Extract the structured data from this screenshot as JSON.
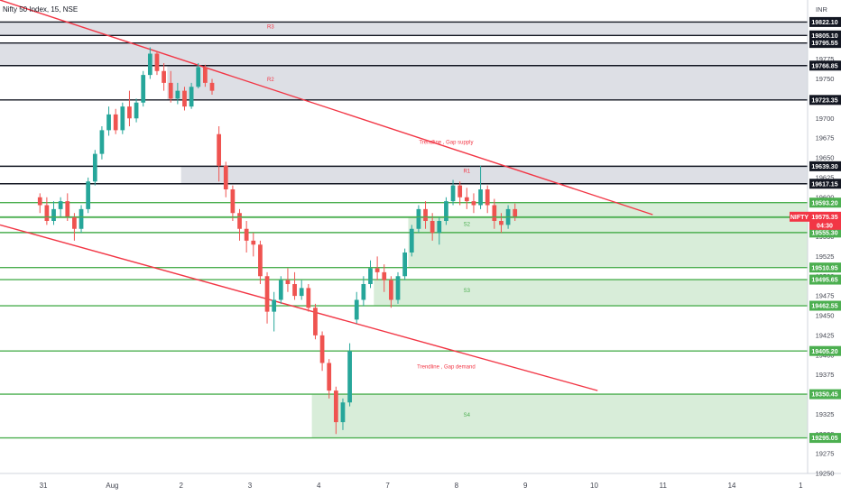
{
  "title": "Nifty 50 Index, 15, NSE",
  "currency": "INR",
  "colors": {
    "up": "#26a69a",
    "down": "#ef5350",
    "resistance": "#131722",
    "support": "#4caf50",
    "trend": "#f23645",
    "supply_fill": "#d1d4dc",
    "demand_fill": "#c8e6c9",
    "price_tag": "#f23645"
  },
  "chart_data": {
    "type": "candlestick",
    "ylim": [
      19250,
      19850
    ],
    "y_ticks": [
      19250,
      19275,
      19300,
      19325,
      19350,
      19375,
      19400,
      19425,
      19450,
      19475,
      19500,
      19525,
      19550,
      19575,
      19600,
      19625,
      19650,
      19675,
      19700,
      19725,
      19750,
      19775
    ],
    "x_axis": [
      {
        "label": "31",
        "pos": 0.5
      },
      {
        "label": "Aug",
        "pos": 10.5
      },
      {
        "label": "2",
        "pos": 20.5
      },
      {
        "label": "3",
        "pos": 30.5
      },
      {
        "label": "4",
        "pos": 40.5
      },
      {
        "label": "7",
        "pos": 50.5
      },
      {
        "label": "8",
        "pos": 60.5
      },
      {
        "label": "9",
        "pos": 70.5
      },
      {
        "label": "10",
        "pos": 80.5
      },
      {
        "label": "11",
        "pos": 90.5
      },
      {
        "label": "14",
        "pos": 100.5
      },
      {
        "label": "1",
        "pos": 110.5
      }
    ],
    "x_range": [
      -5.8,
      111.5
    ],
    "resistance_levels": [
      {
        "value": 19822.1,
        "label": "19822.10"
      },
      {
        "value": 19805.1,
        "label": "19805.10"
      },
      {
        "value": 19795.55,
        "label": "19795.55"
      },
      {
        "value": 19766.85,
        "label": "19766.85"
      },
      {
        "value": 19723.35,
        "label": "19723.35"
      },
      {
        "value": 19639.3,
        "label": "19639.30"
      },
      {
        "value": 19617.15,
        "label": "19617.15"
      }
    ],
    "support_levels": [
      {
        "value": 19593.2,
        "label": "19593.20"
      },
      {
        "value": 19574.55,
        "label": "19574.55"
      },
      {
        "value": 19555.3,
        "label": "19555.30"
      },
      {
        "value": 19510.95,
        "label": "19510.95"
      },
      {
        "value": 19495.65,
        "label": "19495.65"
      },
      {
        "value": 19462.55,
        "label": "19462.55"
      },
      {
        "value": 19405.2,
        "label": "19405.20"
      },
      {
        "value": 19350.45,
        "label": "19350.45"
      },
      {
        "value": 19295.05,
        "label": "19295.05"
      }
    ],
    "supply_zones": [
      {
        "name": "R3",
        "from": 19805.1,
        "to": 19822.1,
        "x0": -5.8
      },
      {
        "name": "",
        "from": 19766.85,
        "to": 19795.55,
        "x0": -5.8
      },
      {
        "name": "R2",
        "from": 19723.35,
        "to": 19766.85,
        "x0": 18.5
      },
      {
        "name": "R1",
        "from": 19617.15,
        "to": 19639.3,
        "x0": 20.5
      }
    ],
    "demand_zones": [
      {
        "name": "",
        "from": 19574.55,
        "to": 19593.2,
        "x0": 66.0
      },
      {
        "name": "S2",
        "from": 19555.3,
        "to": 19574.55,
        "x0": 53.5
      },
      {
        "name": "",
        "from": 19510.95,
        "to": 19555.3,
        "x0": 53.5
      },
      {
        "name": "S3",
        "from": 19462.55,
        "to": 19495.65,
        "x0": 48.5
      },
      {
        "name": "S4",
        "from": 19295.05,
        "to": 19350.45,
        "x0": 39.5
      }
    ],
    "zone_labels": [
      {
        "text": "R3",
        "x": 33.5,
        "y": 19814
      },
      {
        "text": "R2",
        "x": 33.5,
        "y": 19747
      },
      {
        "text": "R1",
        "x": 62.0,
        "y": 19631
      },
      {
        "text": "S2",
        "x": 62.0,
        "y": 19564
      },
      {
        "text": "S3",
        "x": 62.0,
        "y": 19480
      },
      {
        "text": "S4",
        "x": 62.0,
        "y": 19322
      }
    ],
    "trendlines": [
      {
        "label": "Trendline , Gap supply",
        "x1": -5.8,
        "y1": 19850,
        "x2": 89.0,
        "y2": 19578,
        "label_x": 59.0,
        "label_y": 19668
      },
      {
        "label": "Trendline , Gap demand",
        "x1": -5.8,
        "y1": 19565,
        "x2": 81.0,
        "y2": 19355,
        "label_x": 59.0,
        "label_y": 19383
      }
    ],
    "last_price": {
      "symbol": "NIFTY",
      "value": 19575.35,
      "label": "19575.35",
      "countdown": "04:30"
    },
    "candles": [
      [
        19600,
        19605,
        19580,
        19590
      ],
      [
        19590,
        19600,
        19565,
        19570
      ],
      [
        19570,
        19595,
        19565,
        19585
      ],
      [
        19585,
        19600,
        19575,
        19595
      ],
      [
        19595,
        19605,
        19570,
        19575
      ],
      [
        19575,
        19580,
        19545,
        19560
      ],
      [
        19560,
        19590,
        19555,
        19585
      ],
      [
        19585,
        19625,
        19580,
        19620
      ],
      [
        19620,
        19660,
        19615,
        19655
      ],
      [
        19655,
        19690,
        19648,
        19685
      ],
      [
        19685,
        19715,
        19678,
        19705
      ],
      [
        19705,
        19712,
        19680,
        19685
      ],
      [
        19685,
        19720,
        19680,
        19715
      ],
      [
        19715,
        19735,
        19690,
        19700
      ],
      [
        19700,
        19725,
        19695,
        19720
      ],
      [
        19720,
        19760,
        19715,
        19755
      ],
      [
        19755,
        19790,
        19750,
        19782
      ],
      [
        19782,
        19785,
        19755,
        19760
      ],
      [
        19760,
        19770,
        19735,
        19745
      ],
      [
        19745,
        19760,
        19720,
        19725
      ],
      [
        19725,
        19745,
        19718,
        19735
      ],
      [
        19735,
        19740,
        19710,
        19715
      ],
      [
        19715,
        19745,
        19712,
        19740
      ],
      [
        19740,
        19770,
        19738,
        19765
      ],
      [
        19765,
        19768,
        19740,
        19745
      ],
      [
        19745,
        19750,
        19730,
        19735
      ],
      [
        19680,
        19690,
        19620,
        19640
      ],
      [
        19640,
        19645,
        19600,
        19610
      ],
      [
        19610,
        19615,
        19570,
        19580
      ],
      [
        19580,
        19585,
        19545,
        19560
      ],
      [
        19560,
        19570,
        19530,
        19545
      ],
      [
        19545,
        19555,
        19525,
        19540
      ],
      [
        19540,
        19545,
        19490,
        19500
      ],
      [
        19500,
        19505,
        19440,
        19455
      ],
      [
        19455,
        19480,
        19430,
        19470
      ],
      [
        19470,
        19500,
        19465,
        19495
      ],
      [
        19495,
        19510,
        19480,
        19490
      ],
      [
        19490,
        19505,
        19470,
        19475
      ],
      [
        19475,
        19495,
        19470,
        19485
      ],
      [
        19485,
        19490,
        19455,
        19460
      ],
      [
        19460,
        19465,
        19420,
        19425
      ],
      [
        19425,
        19430,
        19380,
        19390
      ],
      [
        19390,
        19395,
        19345,
        19355
      ],
      [
        19355,
        19360,
        19300,
        19315
      ],
      [
        19315,
        19345,
        19305,
        19340
      ],
      [
        19340,
        19415,
        19335,
        19405
      ],
      [
        19445,
        19480,
        19440,
        19470
      ],
      [
        19470,
        19500,
        19462,
        19490
      ],
      [
        19490,
        19520,
        19485,
        19510
      ],
      [
        19510,
        19525,
        19495,
        19505
      ],
      [
        19505,
        19515,
        19480,
        19495
      ],
      [
        19495,
        19500,
        19460,
        19470
      ],
      [
        19470,
        19505,
        19465,
        19500
      ],
      [
        19500,
        19535,
        19495,
        19530
      ],
      [
        19530,
        19565,
        19525,
        19560
      ],
      [
        19560,
        19590,
        19555,
        19585
      ],
      [
        19585,
        19595,
        19560,
        19570
      ],
      [
        19570,
        19580,
        19545,
        19555
      ],
      [
        19555,
        19575,
        19540,
        19570
      ],
      [
        19570,
        19600,
        19565,
        19595
      ],
      [
        19595,
        19622,
        19590,
        19615
      ],
      [
        19615,
        19620,
        19590,
        19600
      ],
      [
        19600,
        19612,
        19585,
        19595
      ],
      [
        19595,
        19605,
        19580,
        19590
      ],
      [
        19590,
        19640,
        19585,
        19610
      ],
      [
        19610,
        19615,
        19580,
        19590
      ],
      [
        19590,
        19598,
        19560,
        19570
      ],
      [
        19570,
        19580,
        19555,
        19565
      ],
      [
        19565,
        19590,
        19560,
        19585
      ],
      [
        19585,
        19592,
        19570,
        19575
      ]
    ]
  }
}
